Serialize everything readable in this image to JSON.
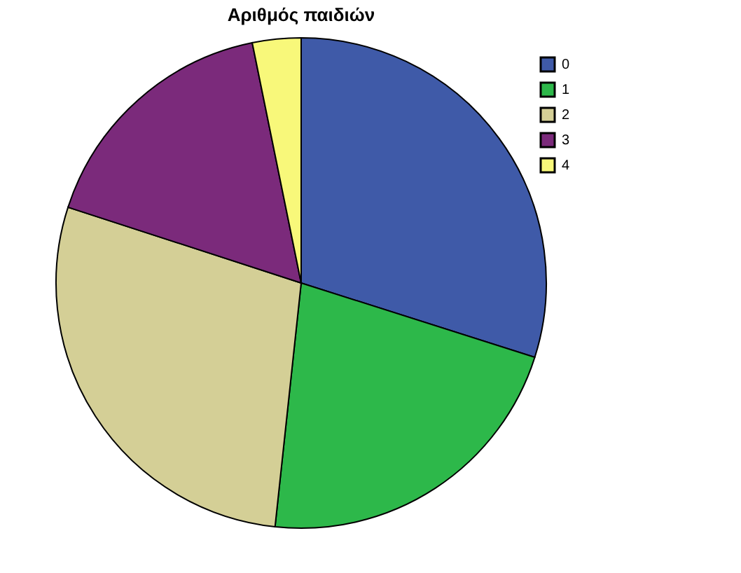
{
  "chart_data": {
    "type": "pie",
    "title": "Αριθμός παιδιών",
    "categories": [
      "0",
      "1",
      "2",
      "3",
      "4"
    ],
    "values": [
      29.9,
      21.8,
      28.3,
      16.8,
      3.2
    ],
    "colors": [
      "#3f5aa8",
      "#2db84a",
      "#d4cf96",
      "#7b2a7b",
      "#f8f87a"
    ],
    "legend": "top right"
  }
}
